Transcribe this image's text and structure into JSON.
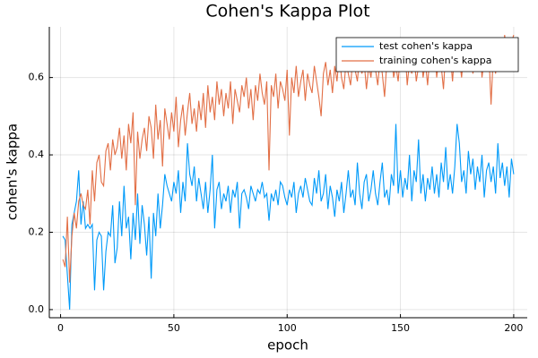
{
  "chart_data": {
    "type": "line",
    "title": "Cohen's Kappa Plot",
    "x_label": "epoch",
    "y_label": "cohen's kappa",
    "x": [
      1,
      2,
      3,
      4,
      5,
      6,
      7,
      8,
      9,
      10,
      11,
      12,
      13,
      14,
      15,
      16,
      17,
      18,
      19,
      20,
      21,
      22,
      23,
      24,
      25,
      26,
      27,
      28,
      29,
      30,
      31,
      32,
      33,
      34,
      35,
      36,
      37,
      38,
      39,
      40,
      41,
      42,
      43,
      44,
      45,
      46,
      47,
      48,
      49,
      50,
      51,
      52,
      53,
      54,
      55,
      56,
      57,
      58,
      59,
      60,
      61,
      62,
      63,
      64,
      65,
      66,
      67,
      68,
      69,
      70,
      71,
      72,
      73,
      74,
      75,
      76,
      77,
      78,
      79,
      80,
      81,
      82,
      83,
      84,
      85,
      86,
      87,
      88,
      89,
      90,
      91,
      92,
      93,
      94,
      95,
      96,
      97,
      98,
      99,
      100,
      101,
      102,
      103,
      104,
      105,
      106,
      107,
      108,
      109,
      110,
      111,
      112,
      113,
      114,
      115,
      116,
      117,
      118,
      119,
      120,
      121,
      122,
      123,
      124,
      125,
      126,
      127,
      128,
      129,
      130,
      131,
      132,
      133,
      134,
      135,
      136,
      137,
      138,
      139,
      140,
      141,
      142,
      143,
      144,
      145,
      146,
      147,
      148,
      149,
      150,
      151,
      152,
      153,
      154,
      155,
      156,
      157,
      158,
      159,
      160,
      161,
      162,
      163,
      164,
      165,
      166,
      167,
      168,
      169,
      170,
      171,
      172,
      173,
      174,
      175,
      176,
      177,
      178,
      179,
      180,
      181,
      182,
      183,
      184,
      185,
      186,
      187,
      188,
      189,
      190,
      191,
      192,
      193,
      194,
      195,
      196,
      197,
      198,
      199,
      200
    ],
    "series": [
      {
        "name": "test cohen's kappa",
        "color": "#009af9",
        "values": [
          0.19,
          0.18,
          0.09,
          0.0,
          0.22,
          0.25,
          0.28,
          0.36,
          0.22,
          0.28,
          0.21,
          0.22,
          0.21,
          0.22,
          0.05,
          0.18,
          0.2,
          0.19,
          0.05,
          0.15,
          0.2,
          0.19,
          0.27,
          0.12,
          0.16,
          0.28,
          0.19,
          0.32,
          0.21,
          0.24,
          0.13,
          0.25,
          0.18,
          0.3,
          0.17,
          0.27,
          0.22,
          0.14,
          0.24,
          0.08,
          0.25,
          0.19,
          0.3,
          0.21,
          0.27,
          0.35,
          0.32,
          0.3,
          0.28,
          0.33,
          0.3,
          0.36,
          0.25,
          0.33,
          0.28,
          0.43,
          0.35,
          0.32,
          0.37,
          0.28,
          0.34,
          0.3,
          0.26,
          0.33,
          0.25,
          0.31,
          0.4,
          0.21,
          0.31,
          0.33,
          0.26,
          0.3,
          0.28,
          0.32,
          0.25,
          0.31,
          0.29,
          0.33,
          0.21,
          0.3,
          0.31,
          0.29,
          0.26,
          0.32,
          0.3,
          0.28,
          0.31,
          0.3,
          0.33,
          0.29,
          0.3,
          0.23,
          0.3,
          0.28,
          0.31,
          0.27,
          0.33,
          0.32,
          0.29,
          0.27,
          0.31,
          0.29,
          0.33,
          0.25,
          0.3,
          0.32,
          0.29,
          0.34,
          0.31,
          0.28,
          0.27,
          0.34,
          0.3,
          0.36,
          0.28,
          0.3,
          0.35,
          0.26,
          0.32,
          0.29,
          0.24,
          0.31,
          0.28,
          0.33,
          0.25,
          0.3,
          0.36,
          0.29,
          0.31,
          0.27,
          0.38,
          0.3,
          0.26,
          0.33,
          0.35,
          0.28,
          0.31,
          0.36,
          0.3,
          0.27,
          0.33,
          0.38,
          0.29,
          0.31,
          0.27,
          0.35,
          0.32,
          0.48,
          0.3,
          0.36,
          0.29,
          0.34,
          0.31,
          0.4,
          0.28,
          0.36,
          0.33,
          0.44,
          0.3,
          0.35,
          0.28,
          0.34,
          0.31,
          0.37,
          0.3,
          0.35,
          0.29,
          0.38,
          0.33,
          0.42,
          0.31,
          0.35,
          0.3,
          0.37,
          0.48,
          0.43,
          0.33,
          0.36,
          0.3,
          0.41,
          0.35,
          0.39,
          0.31,
          0.37,
          0.33,
          0.4,
          0.29,
          0.36,
          0.38,
          0.33,
          0.37,
          0.3,
          0.43,
          0.34,
          0.38,
          0.32,
          0.37,
          0.29,
          0.39,
          0.35
        ]
      },
      {
        "name": "training cohen's kappa",
        "color": "#e26f46",
        "values": [
          0.13,
          0.11,
          0.24,
          0.07,
          0.19,
          0.25,
          0.21,
          0.28,
          0.3,
          0.27,
          0.26,
          0.31,
          0.22,
          0.36,
          0.28,
          0.38,
          0.4,
          0.33,
          0.32,
          0.41,
          0.43,
          0.36,
          0.44,
          0.4,
          0.42,
          0.47,
          0.39,
          0.45,
          0.36,
          0.48,
          0.43,
          0.51,
          0.27,
          0.46,
          0.39,
          0.44,
          0.47,
          0.41,
          0.5,
          0.47,
          0.39,
          0.53,
          0.44,
          0.49,
          0.37,
          0.52,
          0.48,
          0.44,
          0.51,
          0.46,
          0.55,
          0.42,
          0.49,
          0.53,
          0.45,
          0.51,
          0.56,
          0.48,
          0.52,
          0.46,
          0.54,
          0.49,
          0.56,
          0.47,
          0.58,
          0.51,
          0.55,
          0.49,
          0.59,
          0.53,
          0.57,
          0.5,
          0.56,
          0.52,
          0.59,
          0.48,
          0.57,
          0.54,
          0.51,
          0.58,
          0.55,
          0.6,
          0.52,
          0.57,
          0.49,
          0.58,
          0.54,
          0.61,
          0.56,
          0.53,
          0.59,
          0.36,
          0.58,
          0.55,
          0.61,
          0.52,
          0.59,
          0.57,
          0.54,
          0.62,
          0.45,
          0.6,
          0.56,
          0.63,
          0.55,
          0.59,
          0.62,
          0.54,
          0.61,
          0.58,
          0.56,
          0.63,
          0.59,
          0.55,
          0.5,
          0.61,
          0.64,
          0.58,
          0.62,
          0.56,
          0.63,
          0.59,
          0.66,
          0.6,
          0.57,
          0.64,
          0.61,
          0.58,
          0.65,
          0.62,
          0.59,
          0.66,
          0.61,
          0.64,
          0.57,
          0.63,
          0.6,
          0.67,
          0.62,
          0.58,
          0.65,
          0.61,
          0.55,
          0.64,
          0.62,
          0.67,
          0.6,
          0.63,
          0.59,
          0.66,
          0.62,
          0.68,
          0.58,
          0.64,
          0.61,
          0.66,
          0.59,
          0.63,
          0.67,
          0.6,
          0.64,
          0.58,
          0.66,
          0.62,
          0.69,
          0.6,
          0.65,
          0.63,
          0.57,
          0.67,
          0.62,
          0.66,
          0.59,
          0.68,
          0.63,
          0.65,
          0.6,
          0.67,
          0.62,
          0.64,
          0.68,
          0.61,
          0.66,
          0.63,
          0.7,
          0.6,
          0.65,
          0.62,
          0.67,
          0.53,
          0.66,
          0.61,
          0.68,
          0.64,
          0.62,
          0.71,
          0.65,
          0.63,
          0.69,
          0.71
        ]
      }
    ],
    "xlim": [
      -4.97,
      205.97
    ],
    "xticks": [
      0,
      50,
      100,
      150,
      200
    ],
    "ylim": [
      -0.021,
      0.731
    ],
    "yticks": [
      {
        "value": 0,
        "label": "0.0"
      },
      0.2,
      0.4,
      0.6
    ],
    "grid": true,
    "legend": "top right"
  }
}
